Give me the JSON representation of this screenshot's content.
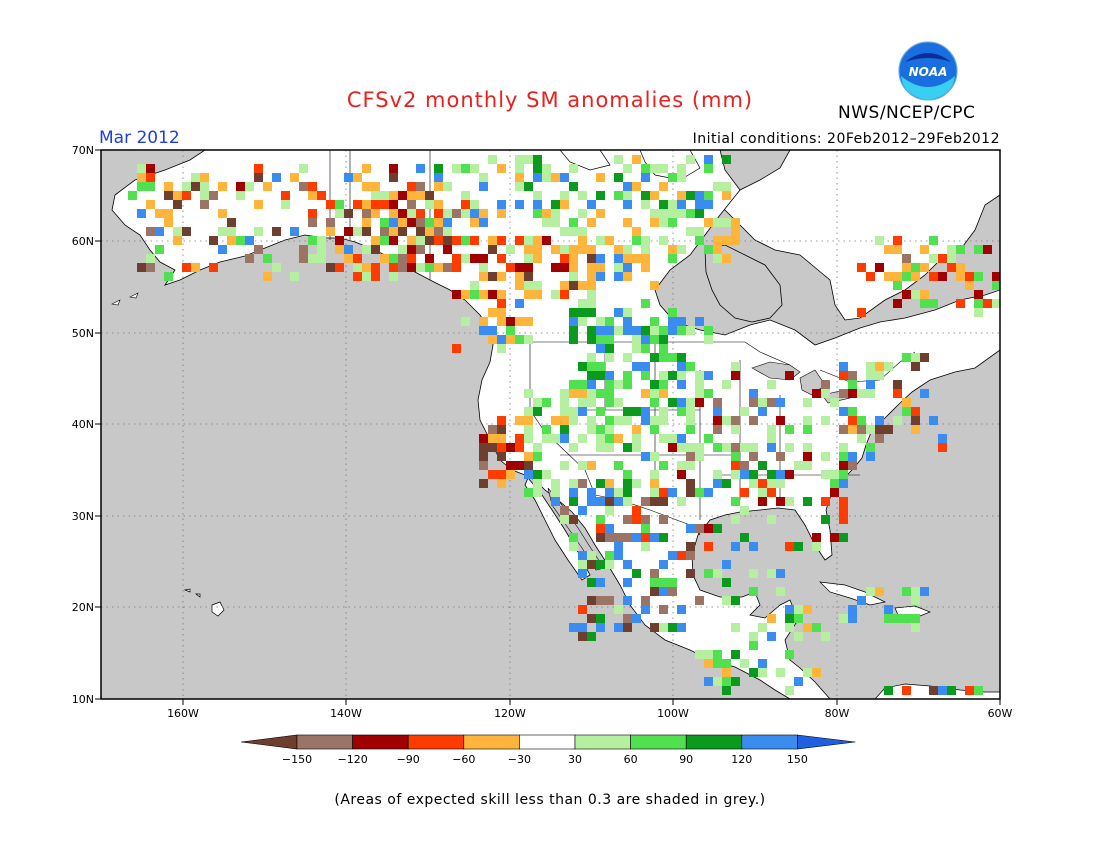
{
  "header": {
    "title": "CFSv2 monthly SM anomalies (mm)",
    "month": "Mar 2012",
    "initial_conditions": "Initial conditions: 20Feb2012–29Feb2012",
    "agency": "NWS/NCEP/CPC",
    "logo_text": "NOAA"
  },
  "map": {
    "lat_labels": [
      "70N",
      "60N",
      "50N",
      "40N",
      "30N",
      "20N",
      "10N"
    ],
    "lon_labels": [
      "160W",
      "140W",
      "120W",
      "100W",
      "80W",
      "60W"
    ],
    "lat_range": [
      10,
      70
    ],
    "lon_range": [
      -170,
      -60
    ],
    "ocean_color": "#c8c8c8",
    "land_color": "#ffffff"
  },
  "legend": {
    "tick_labels": [
      "−150",
      "−120",
      "−90",
      "−60",
      "−30",
      "30",
      "60",
      "90",
      "120",
      "150"
    ],
    "colors": [
      "#6e3e2e",
      "#9c7466",
      "#a00000",
      "#ff3c00",
      "#ffb43c",
      "#ffffff",
      "#b4f0a0",
      "#50e050",
      "#0a9a1e",
      "#3a8cf0",
      "#1e60e0"
    ]
  },
  "footer": {
    "note": "(Areas of expected skill less than 0.3 are shaded in grey.)"
  }
}
